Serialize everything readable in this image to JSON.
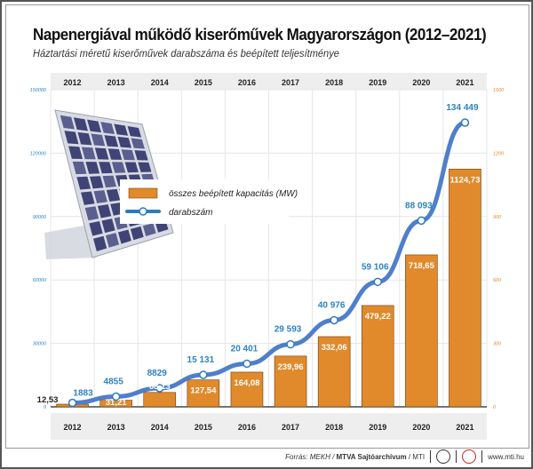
{
  "title": "Napenergiával működő kiserőművek Magyarországon (2012–2021)",
  "subtitle": "Háztartási méretű kiserőművek darabszáma és beépített teljesítménye",
  "legend": {
    "bars": "összes beépített kapacitás (MW)",
    "line": "darabszám"
  },
  "footer": {
    "source_prefix": "Forrás: MEKH / ",
    "source_bold": "MTVA Sajtóarchívum",
    "source_suffix": " / MTI",
    "url": "www.mti.hu"
  },
  "colors": {
    "bars": "#E08A2C",
    "line": "#4F7FCB",
    "line_labels": "#2C83C2",
    "right_axis": "#E08A2C"
  },
  "chart_data": {
    "type": "bar+line",
    "categories": [
      "2012",
      "2013",
      "2014",
      "2015",
      "2016",
      "2017",
      "2018",
      "2019",
      "2020",
      "2021"
    ],
    "series": [
      {
        "name": "összes beépített kapacitás (MW)",
        "type": "bar",
        "axis": "right",
        "values": [
          12.53,
          31.21,
          68.13,
          127.54,
          164.08,
          239.96,
          332.06,
          479.22,
          718.65,
          1124.73
        ],
        "labels": [
          "12,53",
          "31,21",
          "68,13",
          "127,54",
          "164,08",
          "239,96",
          "332,06",
          "479,22",
          "718,65",
          "1124,73"
        ]
      },
      {
        "name": "darabszám",
        "type": "line",
        "axis": "left",
        "values": [
          1883,
          4855,
          8829,
          15131,
          20401,
          29593,
          40976,
          59106,
          88093,
          134449
        ],
        "labels": [
          "1883",
          "4855",
          "8829",
          "15 131",
          "20 401",
          "29 593",
          "40 976",
          "59 106",
          "88 093",
          "134 449"
        ]
      }
    ],
    "left_axis": {
      "range": [
        0,
        150000
      ],
      "ticks": [
        "0",
        "30000",
        "60000",
        "90000",
        "120000",
        "150000"
      ]
    },
    "right_axis": {
      "range": [
        0,
        1500
      ],
      "ticks": [
        "0",
        "300",
        "600",
        "900",
        "1200",
        "1500"
      ]
    },
    "grid": true,
    "legend_position": "upper-left"
  }
}
